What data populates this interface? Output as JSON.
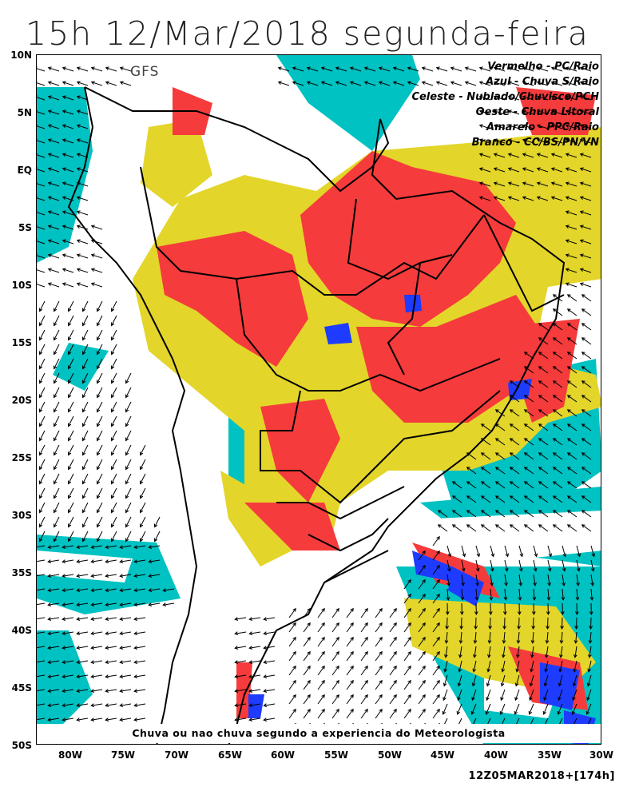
{
  "header": {
    "title": "15h 12/Mar/2018 segunda-feira"
  },
  "map": {
    "model": "GFS",
    "latitude_ticks": [
      "10N",
      "5N",
      "EQ",
      "5S",
      "10S",
      "15S",
      "20S",
      "25S",
      "30S",
      "35S",
      "40S",
      "45S",
      "50S"
    ],
    "longitude_ticks": [
      "80W",
      "75W",
      "70W",
      "65W",
      "60W",
      "55W",
      "50W",
      "45W",
      "40W",
      "35W",
      "30W"
    ],
    "extent": {
      "lon_min": -83,
      "lon_max": -30,
      "lat_min": -50,
      "lat_max": 10
    },
    "legend": [
      "Vermelho - PC/Raio",
      "Azul - Chuva S/Raio",
      "Celeste - Nublado/Chuvisco/PCH",
      "Oeste - Chuva Litoral",
      "Amarelo - PPC/Raio",
      "Branco - CC/BS/PN/VN"
    ],
    "category_colors": {
      "red": "#f53b3b",
      "blue": "#1e3cff",
      "cyan": "#00c2c2",
      "yellow": "#e3d52a",
      "white": "#ffffff"
    },
    "caption": "Chuva ou nao chuva segundo a experiencia do Meteorologista",
    "run": "12Z05MAR2018+[174h]"
  }
}
